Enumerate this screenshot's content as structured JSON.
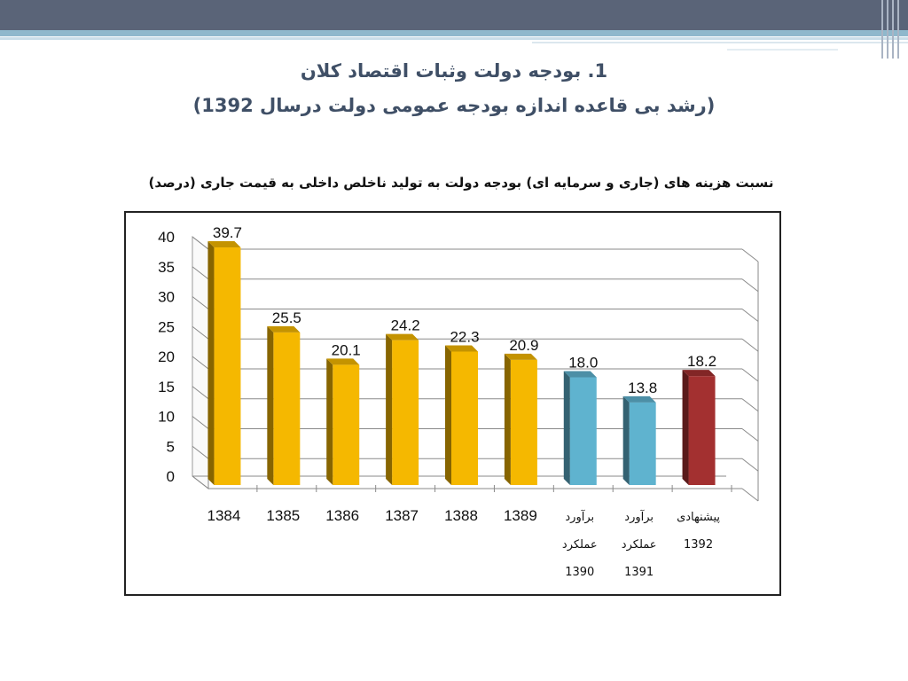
{
  "slide": {
    "title_line1": "1. بودجه دولت وثبات اقتصاد کلان",
    "title_line2": "(رشد بی قاعده اندازه بودجه عمومی دولت درسال 1392)"
  },
  "chart_data": {
    "type": "bar",
    "title": "نسبت هزینه های (جاری و سرمایه ای) بودجه دولت به تولید ناخلص داخلی به قیمت جاری (درصد)",
    "xlabel": "",
    "ylabel": "",
    "ylim": [
      0,
      40
    ],
    "yticks": [
      "0",
      "5",
      "10",
      "15",
      "20",
      "25",
      "30",
      "35",
      "40"
    ],
    "grid": true,
    "legend": "none",
    "categories": [
      {
        "lines": [
          "1384"
        ]
      },
      {
        "lines": [
          "1385"
        ]
      },
      {
        "lines": [
          "1386"
        ]
      },
      {
        "lines": [
          "1387"
        ]
      },
      {
        "lines": [
          "1388"
        ]
      },
      {
        "lines": [
          "1389"
        ]
      },
      {
        "lines": [
          "برآورد",
          "عملکرد",
          "1390"
        ]
      },
      {
        "lines": [
          "برآورد",
          "عملکرد",
          "1391"
        ]
      },
      {
        "lines": [
          "پیشنهادی",
          "1392"
        ]
      }
    ],
    "values": [
      39.7,
      25.5,
      20.1,
      24.2,
      22.3,
      20.9,
      18.0,
      13.8,
      18.2
    ],
    "value_labels": [
      "39.7",
      "25.5",
      "20.1",
      "24.2",
      "22.3",
      "20.9",
      "18.0",
      "13.8",
      "18.2"
    ],
    "bar_colors": [
      "#f5b800",
      "#f5b800",
      "#f5b800",
      "#f5b800",
      "#f5b800",
      "#f5b800",
      "#5fb3cf",
      "#5fb3cf",
      "#a33030"
    ]
  }
}
